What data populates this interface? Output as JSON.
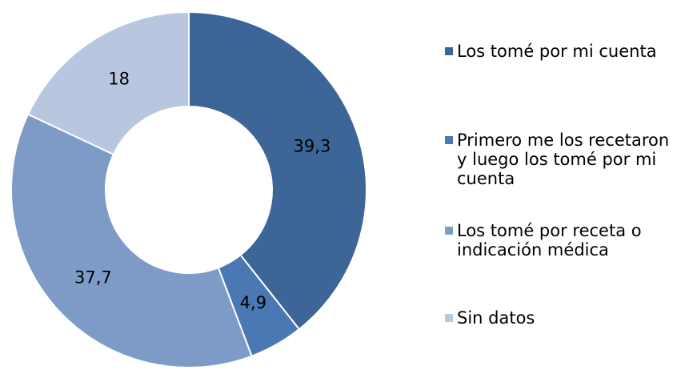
{
  "chart_data": {
    "type": "pie",
    "categories": [
      "Los tomé por mi cuenta",
      "Primero me los recetaron y luego los tomé por mi cuenta",
      "Los tomé por receta o indicación médica",
      "Sin datos"
    ],
    "values": [
      39.3,
      4.9,
      37.7,
      18
    ],
    "value_labels": [
      "39,3",
      "4,9",
      "37,7",
      "18"
    ],
    "colors": [
      "#3e6597",
      "#4a78b2",
      "#7e9bc8",
      "#b8c6e0"
    ],
    "legend": "right"
  }
}
